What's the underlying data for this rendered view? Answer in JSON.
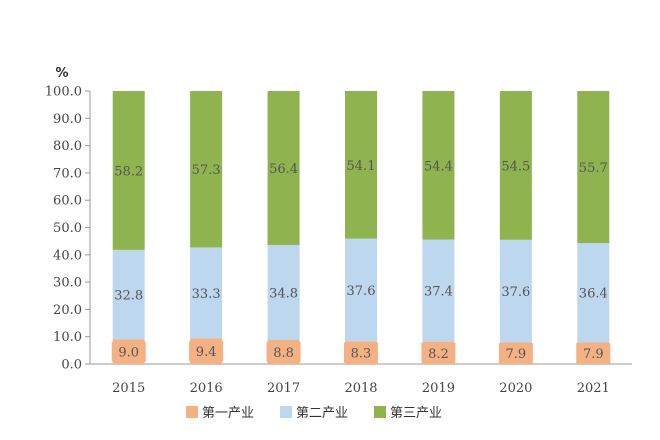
{
  "chart_data": {
    "type": "bar",
    "stacked": true,
    "unit": "%",
    "categories": [
      "2015",
      "2016",
      "2017",
      "2018",
      "2019",
      "2020",
      "2021"
    ],
    "series": [
      {
        "name": "第一产业",
        "color": "#F4B183",
        "values": [
          9.0,
          9.4,
          8.8,
          8.3,
          8.2,
          7.9,
          7.9
        ],
        "labels": [
          "9.0",
          "9.4",
          "8.8",
          "8.3",
          "8.2",
          "7.9",
          "7.9"
        ]
      },
      {
        "name": "第二产业",
        "color": "#BDD7EE",
        "values": [
          32.8,
          33.3,
          34.8,
          37.6,
          37.4,
          37.6,
          36.4
        ],
        "labels": [
          "32.8",
          "33.3",
          "34.8",
          "37.6",
          "37.4",
          "37.6",
          "36.4"
        ]
      },
      {
        "name": "第三产业",
        "color": "#8FB44F",
        "values": [
          58.2,
          57.3,
          56.4,
          54.1,
          54.4,
          54.5,
          55.7
        ],
        "labels": [
          "58.2",
          "57.3",
          "56.4",
          "54.1",
          "54.4",
          "54.5",
          "55.7"
        ]
      }
    ],
    "ylim": [
      0,
      100
    ],
    "yticks": [
      "0.0",
      "10.0",
      "20.0",
      "30.0",
      "40.0",
      "50.0",
      "60.0",
      "70.0",
      "80.0",
      "90.0",
      "100.0"
    ],
    "grid": false,
    "legend_position": "bottom"
  }
}
